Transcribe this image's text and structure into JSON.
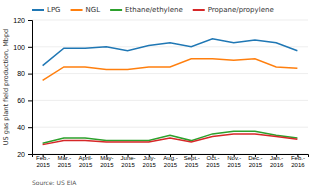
{
  "chart_data": {
    "type": "line",
    "y_label": "US gas plant field production, Mbpd",
    "source": "Source: US EIA",
    "categories": [
      "Feb.-\n2015",
      "Mar.-\n2015",
      "April-\n2015",
      "May-\n2015",
      "June-\n2015",
      "July-\n2015",
      "Aug.-\n2015",
      "Sept.-\n2015",
      "Oct.-\n2015",
      "Nov.-\n2015",
      "Dec.-\n2015",
      "Jan.-\n2016",
      "Feb.-\n2016"
    ],
    "series": [
      {
        "name": "LPG",
        "values": [
          86,
          99,
          99,
          100,
          97,
          101,
          103,
          100,
          106,
          103,
          105,
          103,
          97
        ]
      },
      {
        "name": "NGL",
        "values": [
          75,
          85,
          85,
          83,
          83,
          85,
          85,
          91,
          91,
          90,
          91,
          85,
          84
        ]
      },
      {
        "name": "Ethane/ethylene",
        "values": [
          28,
          32,
          32,
          30,
          30,
          30,
          34,
          30,
          35,
          37,
          37,
          34,
          32
        ]
      },
      {
        "name": "Propane/propylene",
        "values": [
          27,
          30,
          30,
          29,
          29,
          29,
          32,
          29,
          33,
          35,
          35,
          33,
          31
        ]
      }
    ],
    "ylim": [
      20,
      120
    ],
    "yticks": [
      20,
      40,
      60,
      80,
      100,
      120
    ],
    "grid": true,
    "legend": "top"
  }
}
